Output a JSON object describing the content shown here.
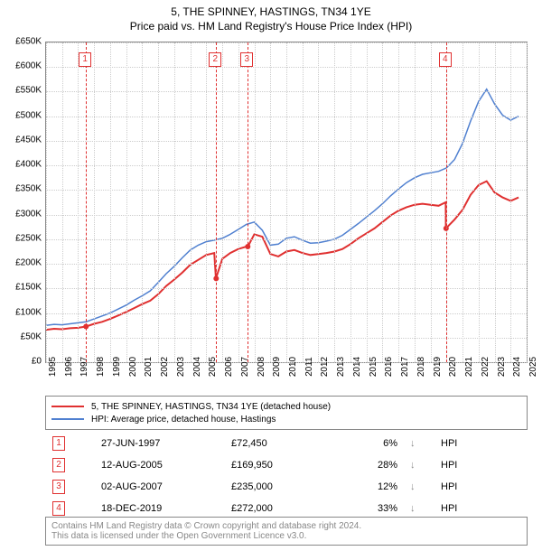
{
  "title_line1": "5, THE SPINNEY, HASTINGS, TN34 1YE",
  "title_line2": "Price paid vs. HM Land Registry's House Price Index (HPI)",
  "chart": {
    "type": "line",
    "x_range": [
      1995,
      2025
    ],
    "y_range": [
      0,
      650000
    ],
    "y_ticks": [
      0,
      50000,
      100000,
      150000,
      200000,
      250000,
      300000,
      350000,
      400000,
      450000,
      500000,
      550000,
      600000,
      650000
    ],
    "y_labels": [
      "£0",
      "£50K",
      "£100K",
      "£150K",
      "£200K",
      "£250K",
      "£300K",
      "£350K",
      "£400K",
      "£450K",
      "£500K",
      "£550K",
      "£600K",
      "£650K"
    ],
    "x_ticks": [
      1995,
      1996,
      1997,
      1998,
      1999,
      2000,
      2001,
      2002,
      2003,
      2004,
      2005,
      2006,
      2007,
      2008,
      2009,
      2010,
      2011,
      2012,
      2013,
      2014,
      2015,
      2016,
      2017,
      2018,
      2019,
      2020,
      2021,
      2022,
      2023,
      2024,
      2025
    ],
    "grid_color": "#cccccc",
    "border_color": "#888888",
    "background_color": "#ffffff",
    "series": [
      {
        "name": "property",
        "label": "5, THE SPINNEY, HASTINGS, TN34 1YE (detached house)",
        "color": "#e03030",
        "width": 2,
        "points": [
          [
            1995.0,
            66000
          ],
          [
            1995.5,
            68000
          ],
          [
            1996.0,
            67000
          ],
          [
            1996.5,
            69000
          ],
          [
            1997.0,
            70000
          ],
          [
            1997.5,
            72450
          ],
          [
            1998.0,
            78000
          ],
          [
            1998.5,
            82000
          ],
          [
            1999.0,
            88000
          ],
          [
            1999.5,
            95000
          ],
          [
            2000.0,
            102000
          ],
          [
            2000.5,
            110000
          ],
          [
            2001.0,
            118000
          ],
          [
            2001.5,
            125000
          ],
          [
            2002.0,
            138000
          ],
          [
            2002.5,
            155000
          ],
          [
            2003.0,
            168000
          ],
          [
            2003.5,
            182000
          ],
          [
            2004.0,
            198000
          ],
          [
            2004.5,
            208000
          ],
          [
            2005.0,
            218000
          ],
          [
            2005.5,
            222000
          ],
          [
            2005.6,
            169950
          ],
          [
            2006.0,
            210000
          ],
          [
            2006.5,
            222000
          ],
          [
            2007.0,
            230000
          ],
          [
            2007.5,
            235000
          ],
          [
            2007.6,
            235000
          ],
          [
            2008.0,
            260000
          ],
          [
            2008.5,
            255000
          ],
          [
            2009.0,
            220000
          ],
          [
            2009.5,
            215000
          ],
          [
            2010.0,
            225000
          ],
          [
            2010.5,
            228000
          ],
          [
            2011.0,
            222000
          ],
          [
            2011.5,
            218000
          ],
          [
            2012.0,
            220000
          ],
          [
            2012.5,
            222000
          ],
          [
            2013.0,
            225000
          ],
          [
            2013.5,
            230000
          ],
          [
            2014.0,
            240000
          ],
          [
            2014.5,
            252000
          ],
          [
            2015.0,
            262000
          ],
          [
            2015.5,
            272000
          ],
          [
            2016.0,
            285000
          ],
          [
            2016.5,
            298000
          ],
          [
            2017.0,
            308000
          ],
          [
            2017.5,
            315000
          ],
          [
            2018.0,
            320000
          ],
          [
            2018.5,
            322000
          ],
          [
            2019.0,
            320000
          ],
          [
            2019.5,
            318000
          ],
          [
            2019.95,
            325000
          ],
          [
            2019.96,
            272000
          ],
          [
            2020.5,
            290000
          ],
          [
            2021.0,
            310000
          ],
          [
            2021.5,
            340000
          ],
          [
            2022.0,
            360000
          ],
          [
            2022.5,
            368000
          ],
          [
            2023.0,
            345000
          ],
          [
            2023.5,
            335000
          ],
          [
            2024.0,
            328000
          ],
          [
            2024.5,
            335000
          ]
        ]
      },
      {
        "name": "hpi",
        "label": "HPI: Average price, detached house, Hastings",
        "color": "#5080d0",
        "width": 1.5,
        "points": [
          [
            1995.0,
            75000
          ],
          [
            1995.5,
            77000
          ],
          [
            1996.0,
            76000
          ],
          [
            1996.5,
            78000
          ],
          [
            1997.0,
            80000
          ],
          [
            1997.5,
            82000
          ],
          [
            1998.0,
            88000
          ],
          [
            1998.5,
            94000
          ],
          [
            1999.0,
            100000
          ],
          [
            1999.5,
            108000
          ],
          [
            2000.0,
            116000
          ],
          [
            2000.5,
            126000
          ],
          [
            2001.0,
            135000
          ],
          [
            2001.5,
            145000
          ],
          [
            2002.0,
            162000
          ],
          [
            2002.5,
            180000
          ],
          [
            2003.0,
            195000
          ],
          [
            2003.5,
            212000
          ],
          [
            2004.0,
            228000
          ],
          [
            2004.5,
            238000
          ],
          [
            2005.0,
            245000
          ],
          [
            2005.5,
            248000
          ],
          [
            2006.0,
            252000
          ],
          [
            2006.5,
            260000
          ],
          [
            2007.0,
            270000
          ],
          [
            2007.5,
            280000
          ],
          [
            2008.0,
            285000
          ],
          [
            2008.5,
            268000
          ],
          [
            2009.0,
            238000
          ],
          [
            2009.5,
            240000
          ],
          [
            2010.0,
            252000
          ],
          [
            2010.5,
            255000
          ],
          [
            2011.0,
            248000
          ],
          [
            2011.5,
            242000
          ],
          [
            2012.0,
            243000
          ],
          [
            2012.5,
            246000
          ],
          [
            2013.0,
            250000
          ],
          [
            2013.5,
            258000
          ],
          [
            2014.0,
            270000
          ],
          [
            2014.5,
            282000
          ],
          [
            2015.0,
            295000
          ],
          [
            2015.5,
            308000
          ],
          [
            2016.0,
            322000
          ],
          [
            2016.5,
            338000
          ],
          [
            2017.0,
            352000
          ],
          [
            2017.5,
            365000
          ],
          [
            2018.0,
            375000
          ],
          [
            2018.5,
            382000
          ],
          [
            2019.0,
            385000
          ],
          [
            2019.5,
            388000
          ],
          [
            2020.0,
            395000
          ],
          [
            2020.5,
            412000
          ],
          [
            2021.0,
            445000
          ],
          [
            2021.5,
            490000
          ],
          [
            2022.0,
            530000
          ],
          [
            2022.5,
            555000
          ],
          [
            2023.0,
            525000
          ],
          [
            2023.5,
            502000
          ],
          [
            2024.0,
            492000
          ],
          [
            2024.5,
            500000
          ]
        ]
      }
    ],
    "sale_markers": [
      {
        "n": "1",
        "year": 1997.49,
        "price": 72450
      },
      {
        "n": "2",
        "year": 2005.62,
        "price": 169950
      },
      {
        "n": "3",
        "year": 2007.59,
        "price": 235000
      },
      {
        "n": "4",
        "year": 2019.97,
        "price": 272000
      }
    ]
  },
  "legend": {
    "items": [
      {
        "color": "#e03030",
        "label": "5, THE SPINNEY, HASTINGS, TN34 1YE (detached house)"
      },
      {
        "color": "#5080d0",
        "label": "HPI: Average price, detached house, Hastings"
      }
    ]
  },
  "events": [
    {
      "n": "1",
      "date": "27-JUN-1997",
      "price": "£72,450",
      "delta": "6%",
      "dir": "↓",
      "vs": "HPI"
    },
    {
      "n": "2",
      "date": "12-AUG-2005",
      "price": "£169,950",
      "delta": "28%",
      "dir": "↓",
      "vs": "HPI"
    },
    {
      "n": "3",
      "date": "02-AUG-2007",
      "price": "£235,000",
      "delta": "12%",
      "dir": "↓",
      "vs": "HPI"
    },
    {
      "n": "4",
      "date": "18-DEC-2019",
      "price": "£272,000",
      "delta": "33%",
      "dir": "↓",
      "vs": "HPI"
    }
  ],
  "footer": {
    "line1": "Contains HM Land Registry data © Crown copyright and database right 2024.",
    "line2": "This data is licensed under the Open Government Licence v3.0."
  }
}
